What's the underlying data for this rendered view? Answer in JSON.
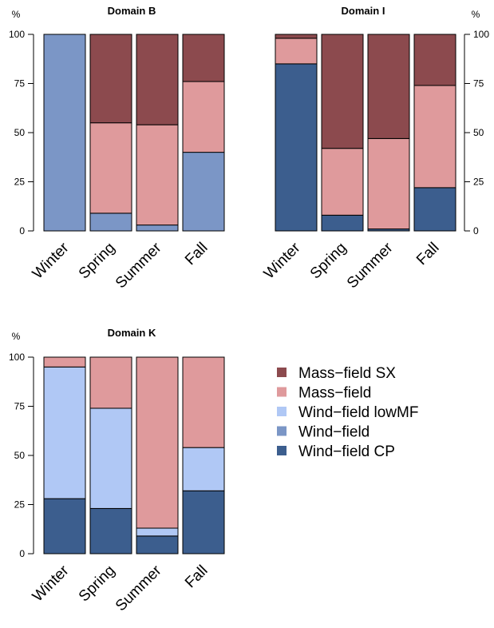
{
  "series_colors": {
    "Mass-field SX": "#8c4a4e",
    "Mass-field": "#df9a9c",
    "Wind-field lowMF": "#b0c8f5",
    "Wind-field": "#7b96c6",
    "Wind-field CP": "#3c5e8e"
  },
  "legend": [
    "Mass−field SX",
    "Mass−field",
    "Wind−field lowMF",
    "Wind−field",
    "Wind−field CP"
  ],
  "chart_data": [
    {
      "type": "bar",
      "stacked": true,
      "title": "Domain B",
      "unit_label": "%",
      "axis_side": "left",
      "categories": [
        "Winter",
        "Spring",
        "Summer",
        "Fall"
      ],
      "ylim": [
        0,
        100
      ],
      "yticks": [
        0,
        25,
        50,
        75,
        100
      ],
      "series": [
        {
          "name": "Wind−field CP",
          "values": [
            0,
            0,
            0,
            0
          ]
        },
        {
          "name": "Wind−field",
          "values": [
            100,
            9,
            3,
            40
          ]
        },
        {
          "name": "Wind−field lowMF",
          "values": [
            0,
            0,
            0,
            0
          ]
        },
        {
          "name": "Mass−field",
          "values": [
            0,
            46,
            51,
            36
          ]
        },
        {
          "name": "Mass−field SX",
          "values": [
            0,
            45,
            46,
            24
          ]
        }
      ]
    },
    {
      "type": "bar",
      "stacked": true,
      "title": "Domain I",
      "unit_label": "%",
      "axis_side": "right",
      "categories": [
        "Winter",
        "Spring",
        "Summer",
        "Fall"
      ],
      "ylim": [
        0,
        100
      ],
      "yticks": [
        0,
        25,
        50,
        75,
        100
      ],
      "series": [
        {
          "name": "Wind−field CP",
          "values": [
            85,
            8,
            1,
            22
          ]
        },
        {
          "name": "Wind−field",
          "values": [
            0,
            0,
            0,
            0
          ]
        },
        {
          "name": "Wind−field lowMF",
          "values": [
            0,
            0,
            0,
            0
          ]
        },
        {
          "name": "Mass−field",
          "values": [
            13,
            34,
            46,
            52
          ]
        },
        {
          "name": "Mass−field SX",
          "values": [
            2,
            58,
            53,
            26
          ]
        }
      ]
    },
    {
      "type": "bar",
      "stacked": true,
      "title": "Domain K",
      "unit_label": "%",
      "axis_side": "left",
      "categories": [
        "Winter",
        "Spring",
        "Summer",
        "Fall"
      ],
      "ylim": [
        0,
        100
      ],
      "yticks": [
        0,
        25,
        50,
        75,
        100
      ],
      "series": [
        {
          "name": "Wind−field CP",
          "values": [
            28,
            23,
            9,
            32
          ]
        },
        {
          "name": "Wind−field",
          "values": [
            0,
            0,
            0,
            0
          ]
        },
        {
          "name": "Wind−field lowMF",
          "values": [
            67,
            51,
            4,
            22
          ]
        },
        {
          "name": "Mass−field",
          "values": [
            5,
            26,
            87,
            46
          ]
        },
        {
          "name": "Mass−field SX",
          "values": [
            0,
            0,
            0,
            0
          ]
        }
      ]
    }
  ]
}
